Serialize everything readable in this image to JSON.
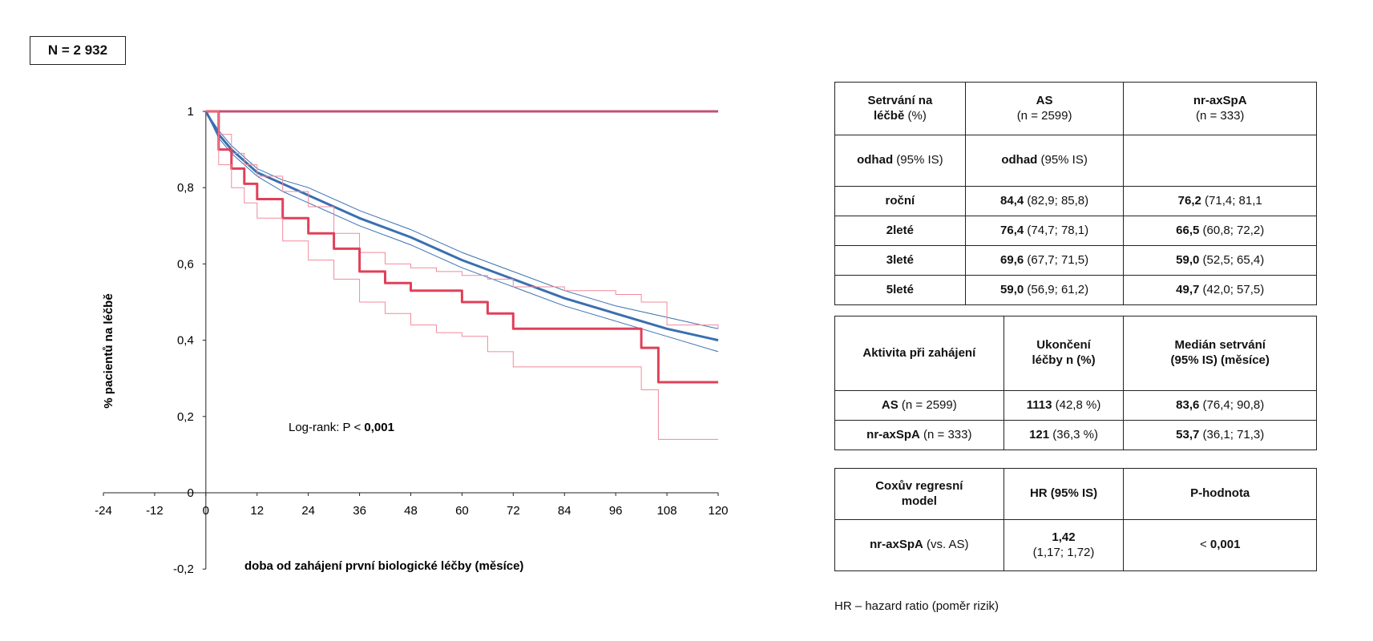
{
  "n_label": "N = 2 932",
  "chart_data": {
    "type": "line",
    "xlabel": "doba od zahájení první biologické léčby (měsíce)",
    "ylabel": "% pacientů na léčbě",
    "xlim": [
      -24,
      120
    ],
    "ylim": [
      -0.2,
      1
    ],
    "xticks": [
      -24,
      -12,
      0,
      12,
      24,
      36,
      48,
      60,
      72,
      84,
      96,
      108,
      120
    ],
    "xtick_labels": [
      "-24",
      "-12",
      "0",
      "12",
      "24",
      "36",
      "48",
      "60",
      "72",
      "84",
      "96",
      "108",
      "120"
    ],
    "yticks": [
      -0.2,
      0,
      0.2,
      0.4,
      0.6,
      0.8,
      1
    ],
    "ytick_labels": [
      "-0,2",
      "0",
      "0,2",
      "0,4",
      "0,6",
      "0,8",
      "1"
    ],
    "annotation_prefix": "Log-rank: P < ",
    "annotation_value": "0,001",
    "series": [
      {
        "id": "ref",
        "color": "#c0507a",
        "width": 3,
        "step": false,
        "x": [
          0,
          120
        ],
        "y": [
          1,
          1
        ]
      },
      {
        "id": "as-upper",
        "color": "#3a6fb0",
        "width": 1,
        "step": false,
        "x": [
          0,
          3,
          6,
          9,
          12,
          18,
          24,
          36,
          48,
          60,
          72,
          84,
          96,
          108,
          120
        ],
        "y": [
          1,
          0.95,
          0.91,
          0.88,
          0.85,
          0.82,
          0.8,
          0.74,
          0.69,
          0.63,
          0.58,
          0.53,
          0.49,
          0.46,
          0.43
        ]
      },
      {
        "id": "as-main",
        "color": "#3a6fb0",
        "width": 3,
        "step": false,
        "x": [
          0,
          3,
          6,
          9,
          12,
          18,
          24,
          36,
          48,
          60,
          72,
          84,
          96,
          108,
          120
        ],
        "y": [
          1,
          0.94,
          0.9,
          0.87,
          0.84,
          0.81,
          0.78,
          0.72,
          0.67,
          0.61,
          0.56,
          0.51,
          0.47,
          0.43,
          0.4
        ]
      },
      {
        "id": "as-lower",
        "color": "#3a6fb0",
        "width": 1,
        "step": false,
        "x": [
          0,
          3,
          6,
          9,
          12,
          18,
          24,
          36,
          48,
          60,
          72,
          84,
          96,
          108,
          120
        ],
        "y": [
          1,
          0.93,
          0.89,
          0.86,
          0.83,
          0.79,
          0.76,
          0.7,
          0.65,
          0.59,
          0.54,
          0.49,
          0.45,
          0.41,
          0.37
        ]
      },
      {
        "id": "nr-upper",
        "color": "#f08a9b",
        "width": 1,
        "step": true,
        "x": [
          0,
          3,
          6,
          9,
          12,
          18,
          24,
          30,
          36,
          42,
          48,
          54,
          60,
          66,
          72,
          84,
          96,
          102,
          108,
          120
        ],
        "y": [
          1,
          0.94,
          0.89,
          0.86,
          0.83,
          0.79,
          0.75,
          0.68,
          0.63,
          0.6,
          0.59,
          0.58,
          0.57,
          0.56,
          0.54,
          0.53,
          0.52,
          0.5,
          0.44,
          0.43
        ]
      },
      {
        "id": "nr-main",
        "color": "#e0405a",
        "width": 3,
        "step": true,
        "x": [
          0,
          3,
          6,
          9,
          12,
          18,
          24,
          30,
          36,
          42,
          48,
          54,
          60,
          66,
          72,
          96,
          102,
          106,
          120
        ],
        "y": [
          1,
          0.9,
          0.85,
          0.81,
          0.77,
          0.72,
          0.68,
          0.64,
          0.58,
          0.55,
          0.53,
          0.53,
          0.5,
          0.47,
          0.43,
          0.43,
          0.38,
          0.29,
          0.29
        ]
      },
      {
        "id": "nr-lower",
        "color": "#f08a9b",
        "width": 1,
        "step": true,
        "x": [
          0,
          3,
          6,
          9,
          12,
          18,
          24,
          30,
          36,
          42,
          48,
          54,
          60,
          66,
          72,
          96,
          102,
          106,
          120
        ],
        "y": [
          1,
          0.86,
          0.8,
          0.76,
          0.72,
          0.66,
          0.61,
          0.56,
          0.5,
          0.47,
          0.44,
          0.42,
          0.41,
          0.37,
          0.33,
          0.33,
          0.27,
          0.14,
          0.14
        ]
      }
    ]
  },
  "table1": {
    "h1": "Setrvání na",
    "h1b": "léčbě",
    "h1c": " (%)",
    "h2": "AS",
    "h2sub": "(n = 2599)",
    "h3": "nr-axSpA",
    "h3sub": "(n = 333)",
    "r1c1b": "odhad",
    "r1c1": " (95% IS)",
    "r1c2b": "odhad",
    "r1c2": " (95% IS)",
    "rows": [
      {
        "label": "roční",
        "as_b": "84,4",
        "as": " (82,9; 85,8)",
        "nr_b": "76,2",
        "nr": " (71,4; 81,1"
      },
      {
        "label": "2leté",
        "as_b": "76,4",
        "as": " (74,7; 78,1)",
        "nr_b": "66,5",
        "nr": " (60,8; 72,2)"
      },
      {
        "label": "3leté",
        "as_b": "69,6",
        "as": " (67,7; 71,5)",
        "nr_b": "59,0",
        "nr": " (52,5; 65,4)"
      },
      {
        "label": "5leté",
        "as_b": "59,0",
        "as": " (56,9; 61,2)",
        "nr_b": "49,7",
        "nr": " (42,0; 57,5)"
      }
    ]
  },
  "table2": {
    "h1": "Aktivita při zahájení",
    "h2a": "Ukončení",
    "h2b": "léčby n (%)",
    "h3a": "Medián setrvání",
    "h3b": "(95% IS) (měsíce)",
    "rows": [
      {
        "lb": "AS",
        "l": " (n = 2599)",
        "u_b": "1113",
        "u": " (42,8 %)",
        "m_b": "83,6",
        "m": " (76,4; 90,8)"
      },
      {
        "lb": "nr-axSpA",
        "l": " (n = 333)",
        "u_b": "121",
        "u": " (36,3 %)",
        "m_b": "53,7",
        "m": " (36,1; 71,3)"
      }
    ]
  },
  "table3": {
    "h1a": "Coxův regresní",
    "h1b": "model",
    "h2": "HR (95% IS)",
    "h3": "P-hodnota",
    "r_lb": "nr-axSpA",
    "r_l": " (vs. AS)",
    "hr_b": "1,42",
    "hr": "(1,17; 1,72)",
    "p_pre": "< ",
    "p_b": "0,001"
  },
  "footnote": "HR – hazard ratio (poměr rizik)"
}
